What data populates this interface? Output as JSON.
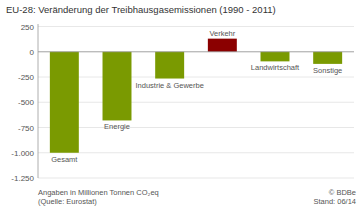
{
  "chart_data": {
    "type": "bar",
    "title": "EU-28: Veränderung der Treibhausgasemissionen (1990 - 2011)",
    "categories": [
      "Gesamt",
      "Energie",
      "Industrie & Gewerbe",
      "Verkehr",
      "Landwirtschaft",
      "Sonstige"
    ],
    "values": [
      -1000,
      -680,
      -265,
      130,
      -95,
      -120
    ],
    "colors": [
      "#7a9a01",
      "#7a9a01",
      "#7a9a01",
      "#8b0000",
      "#7a9a01",
      "#7a9a01"
    ],
    "ylim": [
      -1250,
      275
    ],
    "yticks": [
      250,
      0,
      -250,
      -500,
      -750,
      {
        "value": -1000,
        "label": "-1.000"
      },
      {
        "value": -1250,
        "label": "-1.250"
      }
    ],
    "grid": true,
    "tick_labels": "y",
    "annotations": [
      "Angaben in Millionen Tonnen CO₂eq\n(Quelle: Eurostat)",
      "© BDBe\nStand: 06/14"
    ]
  }
}
